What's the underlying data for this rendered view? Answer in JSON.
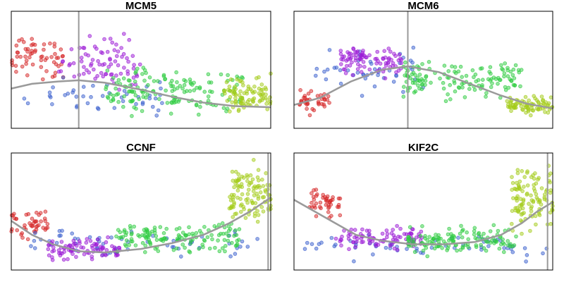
{
  "chart_data": [
    {
      "type": "scatter",
      "title": "MCM5",
      "xlim": [
        0,
        100
      ],
      "ylim": [
        0,
        100
      ],
      "vline_x": 26,
      "colors": [
        "#d62728",
        "#3a5fcd",
        "#9b19d6",
        "#2ecc40",
        "#a4cc1a"
      ],
      "groups": [
        {
          "x": [
            0,
            20
          ],
          "y": [
            30,
            90
          ],
          "n": 60
        },
        {
          "x": [
            5,
            60
          ],
          "y": [
            5,
            50
          ],
          "n": 45
        },
        {
          "x": [
            18,
            50
          ],
          "y": [
            25,
            85
          ],
          "n": 80
        },
        {
          "x": [
            36,
            90
          ],
          "y": [
            5,
            60
          ],
          "n": 150
        },
        {
          "x": [
            82,
            100
          ],
          "y": [
            5,
            50
          ],
          "n": 90
        }
      ],
      "trend": [
        [
          0,
          34
        ],
        [
          8,
          38
        ],
        [
          18,
          40
        ],
        [
          26,
          41
        ],
        [
          36,
          39
        ],
        [
          50,
          33
        ],
        [
          62,
          27
        ],
        [
          74,
          22
        ],
        [
          86,
          19
        ],
        [
          100,
          18
        ]
      ]
    },
    {
      "type": "scatter",
      "title": "MCM6",
      "xlim": [
        0,
        100
      ],
      "ylim": [
        0,
        100
      ],
      "vline_x": 44,
      "colors": [
        "#d62728",
        "#3a5fcd",
        "#9b19d6",
        "#2ecc40",
        "#a4cc1a"
      ],
      "groups": [
        {
          "x": [
            2,
            14
          ],
          "y": [
            10,
            40
          ],
          "n": 40
        },
        {
          "x": [
            8,
            50
          ],
          "y": [
            20,
            75
          ],
          "n": 45
        },
        {
          "x": [
            18,
            42
          ],
          "y": [
            40,
            75
          ],
          "n": 90
        },
        {
          "x": [
            42,
            88
          ],
          "y": [
            20,
            65
          ],
          "n": 140
        },
        {
          "x": [
            82,
            100
          ],
          "y": [
            10,
            30
          ],
          "n": 80
        }
      ],
      "trend": [
        [
          0,
          20
        ],
        [
          10,
          26
        ],
        [
          22,
          40
        ],
        [
          34,
          50
        ],
        [
          44,
          53
        ],
        [
          56,
          48
        ],
        [
          68,
          38
        ],
        [
          80,
          28
        ],
        [
          90,
          21
        ],
        [
          100,
          17
        ]
      ]
    },
    {
      "type": "scatter",
      "title": "CCNF",
      "xlim": [
        0,
        100
      ],
      "ylim": [
        0,
        100
      ],
      "vline_x": 99,
      "colors": [
        "#d62728",
        "#3a5fcd",
        "#9b19d6",
        "#2ecc40",
        "#a4cc1a"
      ],
      "groups": [
        {
          "x": [
            0,
            14
          ],
          "y": [
            20,
            60
          ],
          "n": 45
        },
        {
          "x": [
            5,
            95
          ],
          "y": [
            5,
            40
          ],
          "n": 60
        },
        {
          "x": [
            14,
            42
          ],
          "y": [
            5,
            30
          ],
          "n": 90
        },
        {
          "x": [
            40,
            88
          ],
          "y": [
            10,
            45
          ],
          "n": 140
        },
        {
          "x": [
            84,
            100
          ],
          "y": [
            30,
            100
          ],
          "n": 110
        }
      ],
      "trend": [
        [
          0,
          42
        ],
        [
          8,
          30
        ],
        [
          16,
          22
        ],
        [
          26,
          16
        ],
        [
          36,
          15
        ],
        [
          50,
          18
        ],
        [
          62,
          23
        ],
        [
          74,
          30
        ],
        [
          84,
          40
        ],
        [
          92,
          50
        ],
        [
          100,
          62
        ]
      ]
    },
    {
      "type": "scatter",
      "title": "KIF2C",
      "xlim": [
        0,
        100
      ],
      "ylim": [
        0,
        100
      ],
      "vline_x": 98,
      "colors": [
        "#d62728",
        "#3a5fcd",
        "#9b19d6",
        "#2ecc40",
        "#a4cc1a"
      ],
      "groups": [
        {
          "x": [
            6,
            18
          ],
          "y": [
            40,
            75
          ],
          "n": 45
        },
        {
          "x": [
            2,
            98
          ],
          "y": [
            5,
            35
          ],
          "n": 60
        },
        {
          "x": [
            16,
            50
          ],
          "y": [
            15,
            40
          ],
          "n": 90
        },
        {
          "x": [
            44,
            86
          ],
          "y": [
            10,
            40
          ],
          "n": 130
        },
        {
          "x": [
            84,
            100
          ],
          "y": [
            25,
            100
          ],
          "n": 110
        }
      ],
      "trend": [
        [
          0,
          60
        ],
        [
          8,
          50
        ],
        [
          16,
          40
        ],
        [
          24,
          30
        ],
        [
          34,
          25
        ],
        [
          46,
          22
        ],
        [
          58,
          22
        ],
        [
          70,
          24
        ],
        [
          80,
          30
        ],
        [
          88,
          40
        ],
        [
          94,
          50
        ],
        [
          100,
          58
        ]
      ]
    }
  ]
}
